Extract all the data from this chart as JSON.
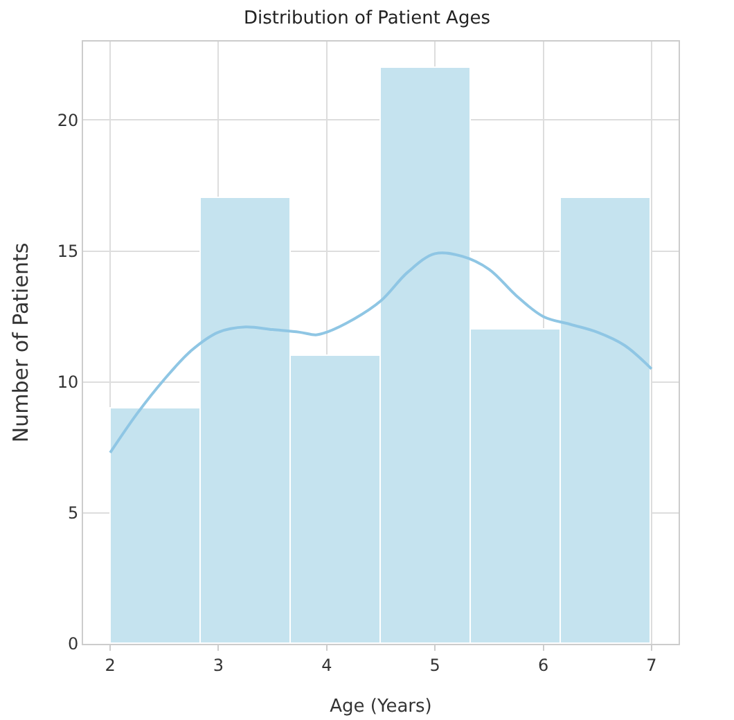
{
  "chart_data": {
    "type": "histogram",
    "title": "Distribution of Patient Ages",
    "xlabel": "Age (Years)",
    "ylabel": "Number of Patients",
    "bins": [
      2,
      2.833,
      3.667,
      4.5,
      5.333,
      6.167,
      7
    ],
    "series": [
      {
        "type": "histogram",
        "color": "#c5e3ef",
        "values": [
          9,
          17,
          11,
          22,
          12,
          17
        ]
      },
      {
        "type": "line",
        "color": "#8fc6e4",
        "x": [
          2,
          2.25,
          2.5,
          2.75,
          3,
          3.25,
          3.5,
          3.75,
          3.9,
          4,
          4.25,
          4.5,
          4.75,
          5,
          5.25,
          5.5,
          5.75,
          6,
          6.25,
          6.5,
          6.75,
          7
        ],
        "values": [
          7.3,
          8.8,
          10.1,
          11.2,
          11.9,
          12.1,
          12,
          11.9,
          11.8,
          11.9,
          12.4,
          13.1,
          14.2,
          14.9,
          14.8,
          14.3,
          13.3,
          12.5,
          12.2,
          11.9,
          11.4,
          10.5
        ]
      }
    ],
    "xlim": [
      1.75,
      7.25
    ],
    "xticks": [
      2,
      3,
      4,
      5,
      6,
      7
    ],
    "ylim": [
      0,
      23
    ],
    "yticks": [
      0,
      5,
      10,
      15,
      20
    ],
    "grid": true,
    "line_style": "solid",
    "marker": "none"
  }
}
